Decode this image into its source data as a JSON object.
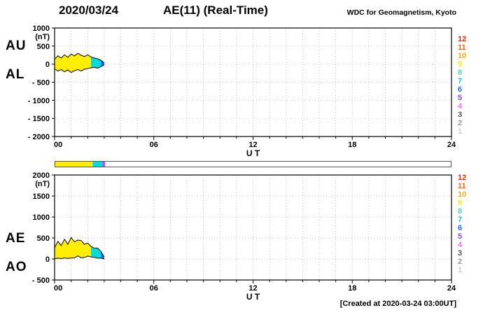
{
  "header": {
    "date": "2020/03/24",
    "title": "AE(11) (Real-Time)",
    "source": "WDC for Geomagnetism, Kyoto"
  },
  "labels": {
    "au": "AU",
    "al": "AL",
    "ae": "AE",
    "ao": "AO"
  },
  "footer": {
    "created": "[Created at 2020-03-24 03:00UT]"
  },
  "legend": {
    "entries": [
      {
        "label": "12",
        "color": "#ff2200"
      },
      {
        "label": "11",
        "color": "#ff6600"
      },
      {
        "label": "10",
        "color": "#ffaa00"
      },
      {
        "label": "9",
        "color": "#ffee00"
      },
      {
        "label": "8",
        "color": "#44ddaa"
      },
      {
        "label": "7",
        "color": "#00ccff"
      },
      {
        "label": "6",
        "color": "#2266ff"
      },
      {
        "label": "5",
        "color": "#8844ee"
      },
      {
        "label": "4",
        "color": "#ff66ff"
      },
      {
        "label": "3",
        "color": "#555555"
      },
      {
        "label": "2",
        "color": "#999999"
      },
      {
        "label": "1",
        "color": "#cccccc"
      }
    ]
  },
  "availability": {
    "segments": [
      {
        "from": 0,
        "to": 2.3,
        "color": "#ffee00"
      },
      {
        "from": 2.3,
        "to": 2.9,
        "color": "#00dddd"
      },
      {
        "from": 2.9,
        "to": 3.05,
        "color": "#cc44ee"
      }
    ]
  },
  "chart_data": [
    {
      "type": "area",
      "title": "AU / AL indices",
      "ylabel": "(nT)",
      "xlabel": "U T",
      "xlim": [
        0,
        24
      ],
      "ylim": [
        -2000,
        1000
      ],
      "grid": "dotted hourly and every 500 nT",
      "yticks": [
        {
          "v": 1000,
          "label": "1000"
        },
        {
          "v": 500,
          "label": "500"
        },
        {
          "v": 0,
          "label": "0"
        },
        {
          "v": -500,
          "label": "- 500"
        },
        {
          "v": -1000,
          "label": "- 1000"
        },
        {
          "v": -1500,
          "label": "- 1500"
        },
        {
          "v": -2000,
          "label": "- 2000"
        }
      ],
      "xtick_positions": [
        0,
        6,
        12,
        18,
        24
      ],
      "xtick_labels": [
        "00",
        "06",
        "12",
        "18",
        "24"
      ],
      "x": [
        0,
        0.2,
        0.4,
        0.6,
        0.8,
        1.0,
        1.2,
        1.4,
        1.6,
        1.8,
        2.0,
        2.2,
        2.4,
        2.6,
        2.8,
        3.0
      ],
      "series": [
        {
          "name": "AU",
          "values": [
            140,
            230,
            170,
            260,
            190,
            280,
            230,
            300,
            250,
            210,
            260,
            200,
            170,
            150,
            110,
            30
          ]
        },
        {
          "name": "AL",
          "values": [
            -130,
            -190,
            -150,
            -210,
            -160,
            -230,
            -180,
            -150,
            -190,
            -140,
            -120,
            -100,
            -90,
            -110,
            -70,
            -20
          ]
        }
      ],
      "fill_segments": [
        {
          "from": 0,
          "to": 2.2,
          "color": "#ffee00"
        },
        {
          "from": 2.2,
          "to": 2.8,
          "color": "#00dddd"
        },
        {
          "from": 2.8,
          "to": 3.0,
          "color": "#2266ff"
        }
      ]
    },
    {
      "type": "area",
      "title": "AE / AO indices",
      "ylabel": "(nT)",
      "xlabel": "U T",
      "xlim": [
        0,
        24
      ],
      "ylim": [
        -500,
        2000
      ],
      "grid": "dotted hourly and every 500 nT",
      "yticks": [
        {
          "v": 2000,
          "label": "2000"
        },
        {
          "v": 1500,
          "label": "1500"
        },
        {
          "v": 1000,
          "label": "1000"
        },
        {
          "v": 500,
          "label": "500"
        },
        {
          "v": 0,
          "label": "0"
        },
        {
          "v": -500,
          "label": "- 500"
        }
      ],
      "xtick_positions": [
        0,
        6,
        12,
        18,
        24
      ],
      "xtick_labels": [
        "00",
        "06",
        "12",
        "18",
        "24"
      ],
      "x": [
        0,
        0.2,
        0.4,
        0.6,
        0.8,
        1.0,
        1.2,
        1.4,
        1.6,
        1.8,
        2.0,
        2.2,
        2.4,
        2.6,
        2.8,
        3.0
      ],
      "series": [
        {
          "name": "AE",
          "values": [
            270,
            420,
            320,
            470,
            350,
            510,
            410,
            450,
            440,
            350,
            380,
            300,
            260,
            260,
            180,
            50
          ]
        },
        {
          "name": "AO",
          "values": [
            5,
            20,
            10,
            25,
            15,
            25,
            25,
            75,
            30,
            35,
            70,
            50,
            40,
            20,
            20,
            5
          ]
        }
      ],
      "fill_segments": [
        {
          "from": 0,
          "to": 2.2,
          "color": "#ffee00"
        },
        {
          "from": 2.2,
          "to": 2.8,
          "color": "#00dddd"
        },
        {
          "from": 2.8,
          "to": 3.0,
          "color": "#2266ff"
        }
      ]
    }
  ]
}
